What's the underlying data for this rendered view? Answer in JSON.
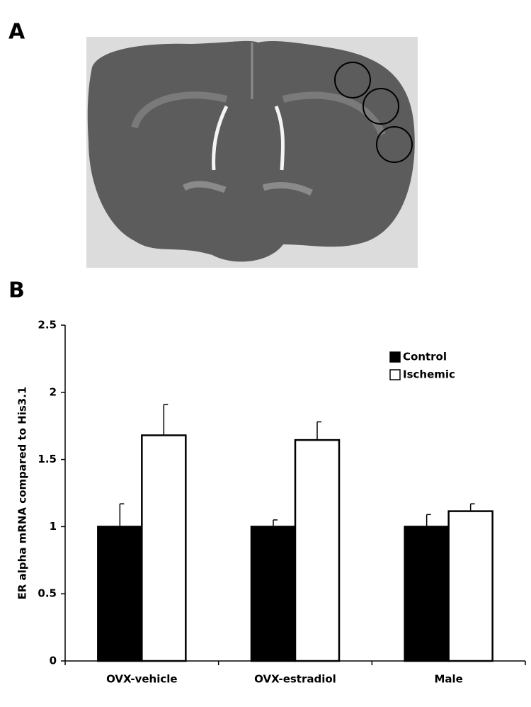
{
  "panel_labels": [
    "A",
    "B"
  ],
  "chart_data": {
    "type": "bar",
    "y_label": "ER alpha mRNA compared to His3.1",
    "categories": [
      "OVX-vehicle",
      "OVX-estradiol",
      "Male"
    ],
    "series": [
      {
        "name": "Control",
        "color": "#000000",
        "values": [
          1.0,
          1.0,
          1.0
        ],
        "errors": [
          0.17,
          0.05,
          0.09
        ]
      },
      {
        "name": "Ischemic",
        "color": "#ffffff",
        "values": [
          1.68,
          1.645,
          1.115
        ],
        "errors": [
          0.23,
          0.135,
          0.055
        ]
      }
    ],
    "ylim": [
      0,
      2.5
    ],
    "yticks": [
      0,
      0.5,
      1,
      1.5,
      2,
      2.5
    ],
    "grid": false,
    "legend": "top-right"
  }
}
